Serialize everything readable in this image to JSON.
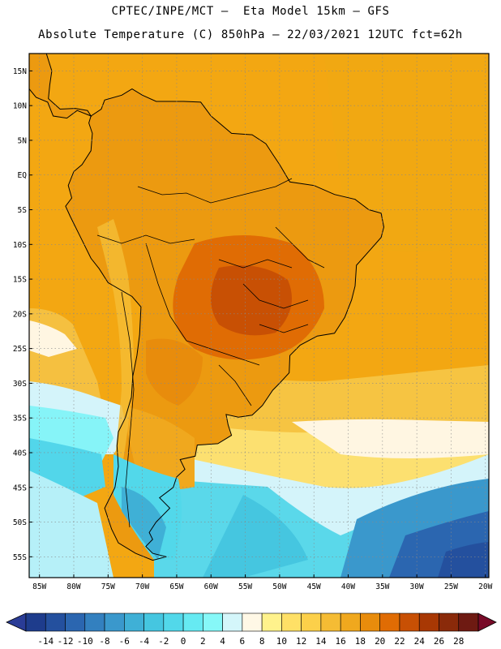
{
  "header": {
    "title_line1": "CPTEC/INPE/MCT –  Eta Model 15km – GFS",
    "title_line2": "Absolute Temperature (C) 850hPa – 22/03/2021 12UTC fct=62h"
  },
  "map": {
    "lat_labels": [
      "15N",
      "10N",
      "5N",
      "EQ",
      "5S",
      "10S",
      "15S",
      "20S",
      "25S",
      "30S",
      "35S",
      "40S",
      "45S",
      "50S",
      "55S"
    ],
    "lon_labels": [
      "85W",
      "80W",
      "75W",
      "70W",
      "65W",
      "60W",
      "55W",
      "50W",
      "45W",
      "40W",
      "35W",
      "30W",
      "25W",
      "20W"
    ]
  },
  "colorbar": {
    "labels": [
      "-14",
      "-12",
      "-10",
      "-8",
      "-6",
      "-4",
      "-2",
      "0",
      "2",
      "4",
      "6",
      "8",
      "10",
      "12",
      "14",
      "16",
      "18",
      "20",
      "22",
      "24",
      "26",
      "28"
    ],
    "colors": [
      "#1e3c8c",
      "#24509e",
      "#2b66b0",
      "#3380bf",
      "#3a98cc",
      "#3fb0d6",
      "#45c6e0",
      "#52d8ea",
      "#66eaf2",
      "#86f8f8",
      "#d4f6fa",
      "#fff8e6",
      "#fff28c",
      "#ffe066",
      "#fcd04a",
      "#f5bc34",
      "#f0a81e",
      "#e88c0c",
      "#e06c04",
      "#c85004",
      "#a83804",
      "#8a2a0a",
      "#6e1a12"
    ],
    "under_color": "#2a3c96",
    "over_color": "#780a28"
  }
}
